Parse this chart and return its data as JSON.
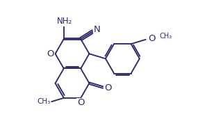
{
  "lc": "#2a2a6a",
  "bg": "#ffffff",
  "lw": 1.35,
  "fs": 8.5,
  "figsize": [
    3.18,
    1.97
  ],
  "dpi": 100,
  "xlim": [
    0.0,
    9.5
  ],
  "ylim": [
    -0.5,
    7.5
  ]
}
